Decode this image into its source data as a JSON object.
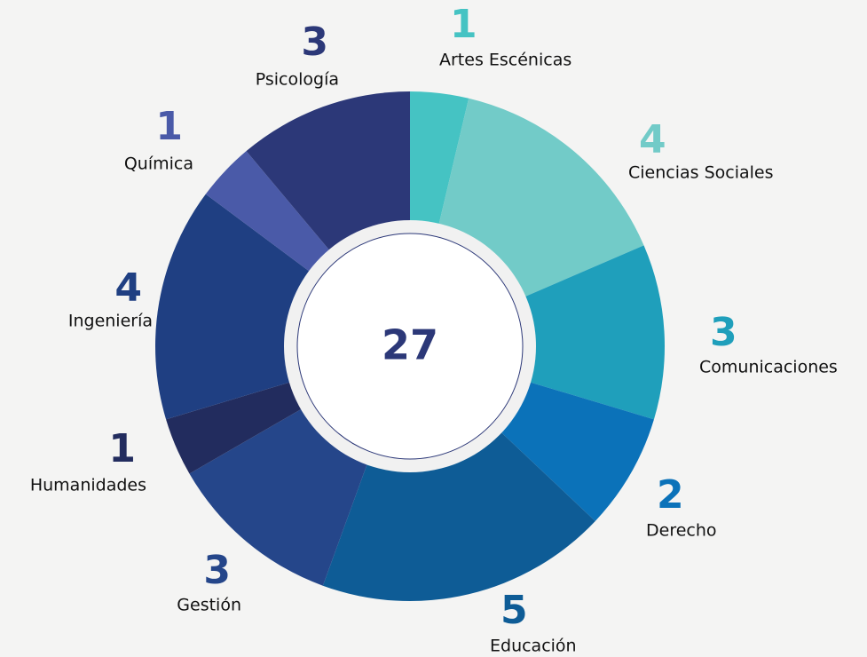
{
  "chart_data": {
    "type": "donut",
    "total": 27,
    "categories": [
      "Artes Escénicas",
      "Ciencias Sociales",
      "Comunicaciones",
      "Derecho",
      "Educación",
      "Gestión",
      "Humanidades",
      "Ingeniería",
      "Química",
      "Psicología"
    ],
    "values": [
      1,
      4,
      3,
      2,
      5,
      3,
      1,
      4,
      1,
      3
    ],
    "colors": [
      "#45c3c3",
      "#72cbc8",
      "#1f9fbb",
      "#0b72b9",
      "#0e5c96",
      "#25468a",
      "#222c5e",
      "#1f3f82",
      "#4a5aa8",
      "#2c3878"
    ]
  }
}
